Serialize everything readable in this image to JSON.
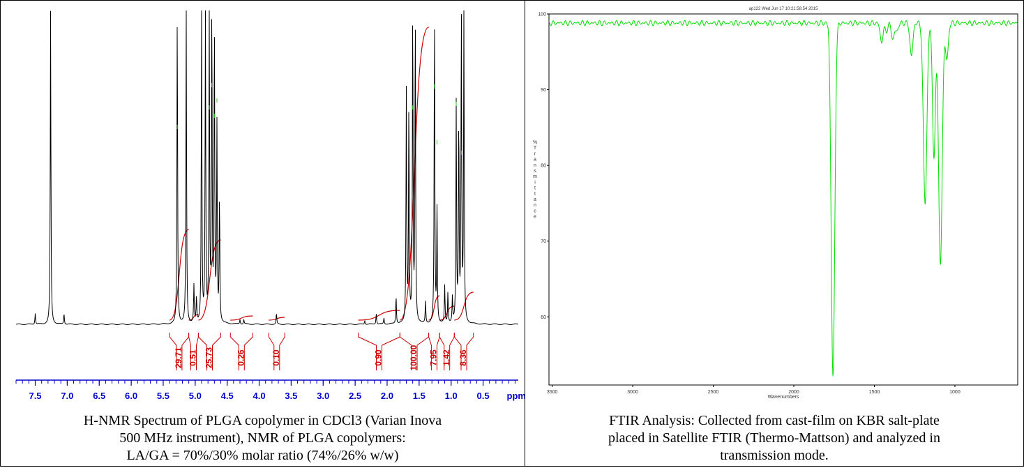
{
  "nmr": {
    "caption_lines": [
      "H-NMR Spectrum of PLGA copolymer in CDCl3 (Varian Inova",
      "500 MHz instrument), NMR of PLGA copolymers:",
      "LA/GA = 70%/30% molar ratio (74%/26% w/w)"
    ]
  },
  "ftir": {
    "caption_lines": [
      "FTIR Analysis: Collected from cast-film on KBR salt-plate",
      "placed in Satellite FTIR (Thermo-Mattson) and analyzed in",
      "transmission mode."
    ]
  },
  "colors": {
    "nmr_spectrum": "#000000",
    "nmr_integral": "#cc0000",
    "nmr_axis": "#0000cc",
    "ftir_spectrum": "#00dd00",
    "ftir_axis": "#000000"
  },
  "chart_data": [
    {
      "type": "line",
      "title": "",
      "xlabel": "ppm",
      "ylabel": "",
      "x_axis": "reversed",
      "xlim": [
        7.8,
        -0.05
      ],
      "x_ticks": [
        "7.5",
        "7.0",
        "6.5",
        "6.0",
        "5.5",
        "5.0",
        "4.5",
        "4.0",
        "3.5",
        "3.0",
        "2.5",
        "2.0",
        "1.5",
        "1.0",
        "0.5"
      ],
      "tick_values": [
        7.5,
        7.0,
        6.5,
        6.0,
        5.5,
        5.0,
        4.5,
        4.0,
        3.5,
        3.0,
        2.5,
        2.0,
        1.5,
        1.0,
        0.5
      ],
      "peaks": [
        {
          "ppm": 7.5,
          "height": 0.035
        },
        {
          "ppm": 7.26,
          "height": 1.0
        },
        {
          "ppm": 7.05,
          "height": 0.035
        },
        {
          "ppm": 5.28,
          "height": 1.0
        },
        {
          "ppm": 5.14,
          "height": 1.0
        },
        {
          "ppm": 5.02,
          "height": 0.12
        },
        {
          "ppm": 4.98,
          "height": 0.08
        },
        {
          "ppm": 4.9,
          "height": 1.0
        },
        {
          "ppm": 4.84,
          "height": 1.0
        },
        {
          "ppm": 4.78,
          "height": 1.0
        },
        {
          "ppm": 4.74,
          "height": 1.0
        },
        {
          "ppm": 4.7,
          "height": 0.95
        },
        {
          "ppm": 4.66,
          "height": 0.62
        },
        {
          "ppm": 4.62,
          "height": 0.4
        },
        {
          "ppm": 4.3,
          "height": 0.015
        },
        {
          "ppm": 4.24,
          "height": 0.015
        },
        {
          "ppm": 3.73,
          "height": 0.035
        },
        {
          "ppm": 2.35,
          "height": 0.012
        },
        {
          "ppm": 2.17,
          "height": 0.035
        },
        {
          "ppm": 2.05,
          "height": 0.02
        },
        {
          "ppm": 1.86,
          "height": 0.09
        },
        {
          "ppm": 1.7,
          "height": 0.74
        },
        {
          "ppm": 1.66,
          "height": 0.7
        },
        {
          "ppm": 1.6,
          "height": 1.0
        },
        {
          "ppm": 1.56,
          "height": 1.0
        },
        {
          "ppm": 1.4,
          "height": 0.07
        },
        {
          "ppm": 1.26,
          "height": 1.0
        },
        {
          "ppm": 1.22,
          "height": 0.36
        },
        {
          "ppm": 1.1,
          "height": 0.12
        },
        {
          "ppm": 1.05,
          "height": 0.1
        },
        {
          "ppm": 0.98,
          "height": 0.08
        },
        {
          "ppm": 0.92,
          "height": 0.7
        },
        {
          "ppm": 0.88,
          "height": 0.65
        },
        {
          "ppm": 0.84,
          "height": 1.0
        },
        {
          "ppm": 0.8,
          "height": 1.0
        }
      ],
      "integrals": [
        {
          "label": "29.71",
          "from": 5.4,
          "to": 5.1
        },
        {
          "label": "0.51",
          "from": 5.1,
          "to": 4.95
        },
        {
          "label": "25.73",
          "from": 4.95,
          "to": 4.6
        },
        {
          "label": "0.26",
          "from": 4.45,
          "to": 4.1
        },
        {
          "label": "0.10",
          "from": 3.85,
          "to": 3.6
        },
        {
          "label": "0.90",
          "from": 2.45,
          "to": 1.8
        },
        {
          "label": "100.00",
          "from": 1.8,
          "to": 1.35
        },
        {
          "label": "7.95",
          "from": 1.35,
          "to": 1.18
        },
        {
          "label": "1.42",
          "from": 1.18,
          "to": 0.95
        },
        {
          "label": "8.36",
          "from": 0.95,
          "to": 0.65
        }
      ]
    },
    {
      "type": "line",
      "title": "ap122  Wed Jun 17 10:21:58:54 2015",
      "xlabel": "Wavenumbers",
      "ylabel": "%Transmittance",
      "x_axis": "reversed",
      "xlim": [
        3520,
        610
      ],
      "ylim": [
        51,
        100
      ],
      "x_ticks": [
        "3500",
        "3000",
        "2500",
        "2000",
        "1500",
        "1000"
      ],
      "x_tick_values": [
        3500,
        3000,
        2500,
        2000,
        1500,
        1000
      ],
      "y_ticks": [
        "100",
        "90",
        "80",
        "70",
        "60"
      ],
      "y_tick_values": [
        100,
        90,
        80,
        70,
        60
      ],
      "baseline": 98.8,
      "bands": [
        {
          "wavenumber": 1757,
          "transmittance": 51.5
        },
        {
          "wavenumber": 1455,
          "transmittance": 96.3
        },
        {
          "wavenumber": 1425,
          "transmittance": 97.8
        },
        {
          "wavenumber": 1385,
          "transmittance": 96.7
        },
        {
          "wavenumber": 1360,
          "transmittance": 97.8
        },
        {
          "wavenumber": 1270,
          "transmittance": 94.4
        },
        {
          "wavenumber": 1185,
          "transmittance": 75.0
        },
        {
          "wavenumber": 1130,
          "transmittance": 81.0
        },
        {
          "wavenumber": 1090,
          "transmittance": 66.5
        },
        {
          "wavenumber": 1050,
          "transmittance": 94.0
        }
      ]
    }
  ]
}
